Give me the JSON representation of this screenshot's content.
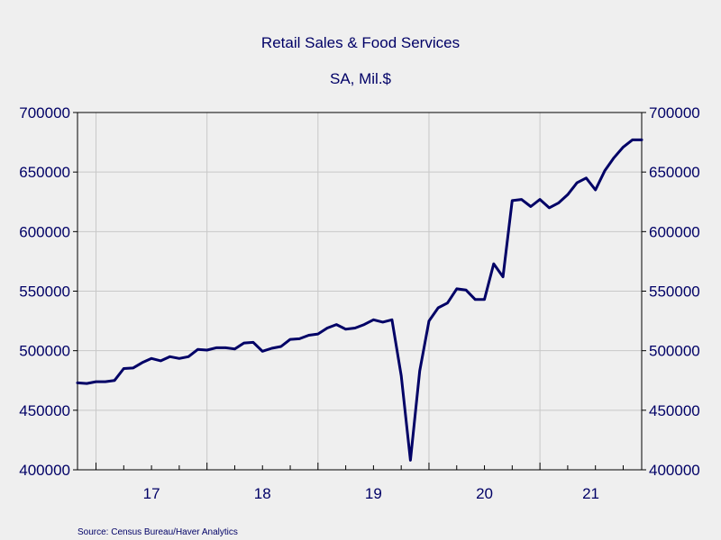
{
  "chart_data": {
    "type": "line",
    "title": "Retail Sales & Food Services",
    "subtitle": "SA, Mil.$",
    "source": "Source:  Census Bureau/Haver Analytics",
    "ylim": [
      400000,
      700000
    ],
    "yticks": [
      400000,
      450000,
      500000,
      550000,
      600000,
      650000,
      700000
    ],
    "ytick_labels": [
      "400000",
      "450000",
      "500000",
      "550000",
      "600000",
      "650000",
      "700000"
    ],
    "xlim": [
      "2016-11",
      "2021-12"
    ],
    "year_labels": [
      {
        "label": "17",
        "year": 2017
      },
      {
        "label": "18",
        "year": 2018
      },
      {
        "label": "19",
        "year": 2019
      },
      {
        "label": "20",
        "year": 2020
      },
      {
        "label": "21",
        "year": 2021
      }
    ],
    "grid": true,
    "line_color": "#000066",
    "series": [
      {
        "name": "",
        "x": [
          "2016-11",
          "2016-12",
          "2017-01",
          "2017-02",
          "2017-03",
          "2017-04",
          "2017-05",
          "2017-06",
          "2017-07",
          "2017-08",
          "2017-09",
          "2017-10",
          "2017-11",
          "2017-12",
          "2018-01",
          "2018-02",
          "2018-03",
          "2018-04",
          "2018-05",
          "2018-06",
          "2018-07",
          "2018-08",
          "2018-09",
          "2018-10",
          "2018-11",
          "2018-12",
          "2019-01",
          "2019-02",
          "2019-03",
          "2019-04",
          "2019-05",
          "2019-06",
          "2019-07",
          "2019-08",
          "2019-09",
          "2019-10",
          "2019-11",
          "2019-12",
          "2020-01",
          "2020-02",
          "2020-03",
          "2020-04",
          "2020-05",
          "2020-06",
          "2020-07",
          "2020-08",
          "2020-09",
          "2020-10",
          "2020-11",
          "2020-12",
          "2021-01",
          "2021-02",
          "2021-03",
          "2021-04",
          "2021-05",
          "2021-06",
          "2021-07",
          "2021-08",
          "2021-09",
          "2021-10",
          "2021-11",
          "2021-12"
        ],
        "values": [
          473000,
          472500,
          474000,
          474000,
          475000,
          485000,
          485500,
          490000,
          493500,
          491500,
          495000,
          493500,
          495000,
          501000,
          500500,
          502500,
          502500,
          501500,
          506500,
          507000,
          499500,
          502000,
          503500,
          509500,
          510000,
          513000,
          514000,
          519000,
          522000,
          518000,
          519000,
          522000,
          526000,
          524000,
          526000,
          479000,
          408000,
          483000,
          525000,
          536000,
          540000,
          552000,
          551000,
          543000,
          543000,
          573000,
          562000,
          626000,
          627000,
          621000,
          627000,
          620000,
          624000,
          631000,
          641000,
          645000,
          635000,
          651000,
          662000,
          671000,
          677000,
          677000
        ]
      }
    ]
  }
}
